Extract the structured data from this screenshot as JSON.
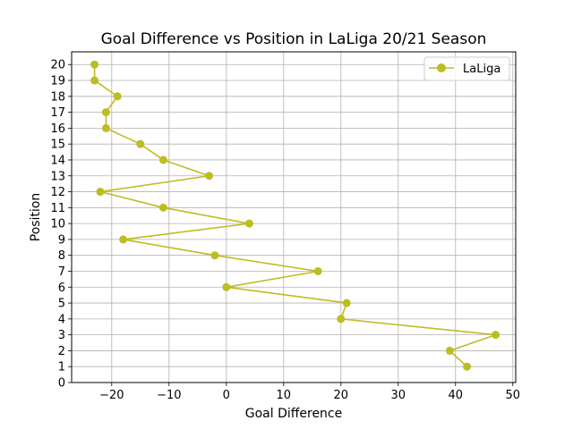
{
  "chart_data": {
    "type": "line",
    "title": "Goal Difference vs Position in LaLiga 20/21 Season",
    "xlabel": "Goal Difference",
    "ylabel": "Position",
    "xlim": [
      -27,
      50.5
    ],
    "ylim": [
      0,
      20.8
    ],
    "xticks": [
      -20,
      -10,
      0,
      10,
      20,
      30,
      40,
      50
    ],
    "xtick_labels": [
      "−20",
      "−10",
      "0",
      "10",
      "20",
      "30",
      "40",
      "50"
    ],
    "yticks": [
      0,
      1,
      2,
      3,
      4,
      5,
      6,
      7,
      8,
      9,
      10,
      11,
      12,
      13,
      14,
      15,
      16,
      17,
      18,
      19,
      20
    ],
    "grid": true,
    "legend_position": "top-right",
    "color": "#bcbd22",
    "series": [
      {
        "name": "LaLiga",
        "points": [
          {
            "x": 42,
            "y": 1
          },
          {
            "x": 39,
            "y": 2
          },
          {
            "x": 47,
            "y": 3
          },
          {
            "x": 20,
            "y": 4
          },
          {
            "x": 21,
            "y": 5
          },
          {
            "x": 0,
            "y": 6
          },
          {
            "x": 16,
            "y": 7
          },
          {
            "x": -2,
            "y": 8
          },
          {
            "x": -18,
            "y": 9
          },
          {
            "x": 4,
            "y": 10
          },
          {
            "x": -11,
            "y": 11
          },
          {
            "x": -22,
            "y": 12
          },
          {
            "x": -3,
            "y": 13
          },
          {
            "x": -11,
            "y": 14
          },
          {
            "x": -15,
            "y": 15
          },
          {
            "x": -21,
            "y": 16
          },
          {
            "x": -21,
            "y": 17
          },
          {
            "x": -19,
            "y": 18
          },
          {
            "x": -23,
            "y": 19
          },
          {
            "x": -23,
            "y": 20
          }
        ]
      }
    ]
  }
}
